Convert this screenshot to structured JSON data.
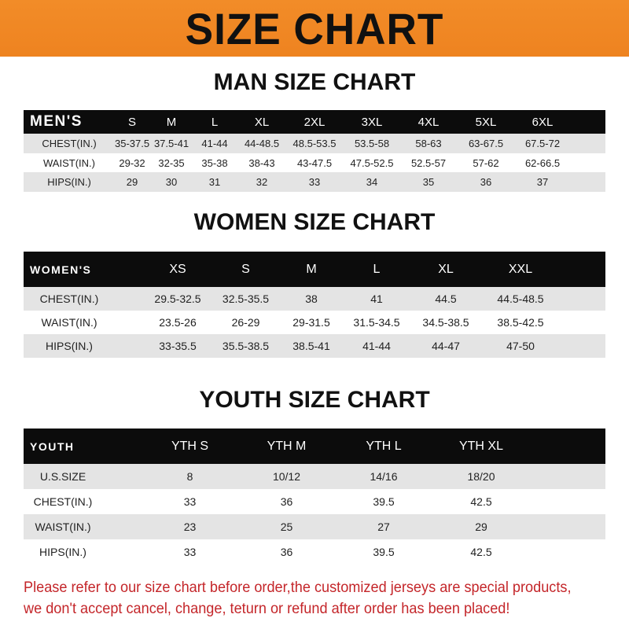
{
  "banner_title": "SIZE CHART",
  "men": {
    "title": "MAN SIZE CHART",
    "header": "MEN'S",
    "sizes": [
      "S",
      "M",
      "L",
      "XL",
      "2XL",
      "3XL",
      "4XL",
      "5XL",
      "6XL"
    ],
    "rows": [
      {
        "label": "CHEST(IN.)",
        "values": [
          "35-37.5",
          "37.5-41",
          "41-44",
          "44-48.5",
          "48.5-53.5",
          "53.5-58",
          "58-63",
          "63-67.5",
          "67.5-72"
        ]
      },
      {
        "label": "WAIST(IN.)",
        "values": [
          "29-32",
          "32-35",
          "35-38",
          "38-43",
          "43-47.5",
          "47.5-52.5",
          "52.5-57",
          "57-62",
          "62-66.5"
        ]
      },
      {
        "label": "HIPS(IN.)",
        "values": [
          "29",
          "30",
          "31",
          "32",
          "33",
          "34",
          "35",
          "36",
          "37"
        ]
      }
    ]
  },
  "women": {
    "title": "WOMEN SIZE CHART",
    "header": "WOMEN'S",
    "sizes": [
      "XS",
      "S",
      "M",
      "L",
      "XL",
      "XXL"
    ],
    "rows": [
      {
        "label": "CHEST(IN.)",
        "values": [
          "29.5-32.5",
          "32.5-35.5",
          "38",
          "41",
          "44.5",
          "44.5-48.5"
        ]
      },
      {
        "label": "WAIST(IN.)",
        "values": [
          "23.5-26",
          "26-29",
          "29-31.5",
          "31.5-34.5",
          "34.5-38.5",
          "38.5-42.5"
        ]
      },
      {
        "label": "HIPS(IN.)",
        "values": [
          "33-35.5",
          "35.5-38.5",
          "38.5-41",
          "41-44",
          "44-47",
          "47-50"
        ]
      }
    ]
  },
  "youth": {
    "title": "YOUTH SIZE CHART",
    "header": "YOUTH",
    "sizes": [
      "YTH S",
      "YTH M",
      "YTH L",
      "YTH XL"
    ],
    "rows": [
      {
        "label": "U.S.SIZE",
        "values": [
          "8",
          "10/12",
          "14/16",
          "18/20"
        ]
      },
      {
        "label": "CHEST(IN.)",
        "values": [
          "33",
          "36",
          "39.5",
          "42.5"
        ]
      },
      {
        "label": "WAIST(IN.)",
        "values": [
          "23",
          "25",
          "27",
          "29"
        ]
      },
      {
        "label": "HIPS(IN.)",
        "values": [
          "33",
          "36",
          "39.5",
          "42.5"
        ]
      }
    ]
  },
  "note": [
    "Please refer to our size chart before order,the customized jerseys are special products,",
    "we don't accept cancel, change, teturn or refund after order has been placed!"
  ],
  "colors": {
    "banner": "#f08a24",
    "header_row": "#0c0c0c",
    "stripe": "#e4e4e4",
    "note": "#c4262a"
  }
}
